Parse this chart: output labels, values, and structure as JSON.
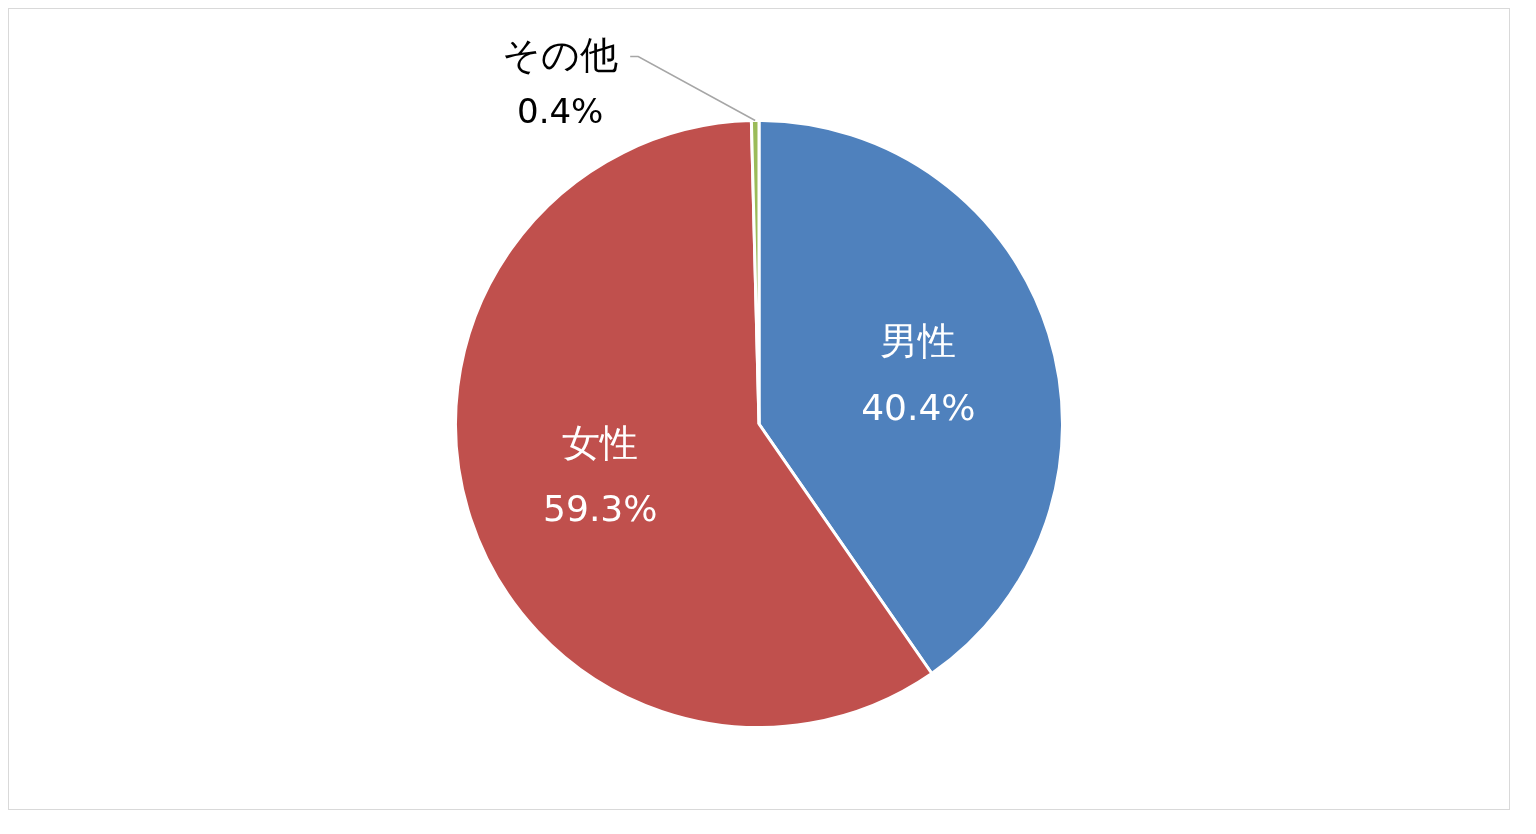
{
  "chart_data": {
    "type": "pie",
    "categories": [
      "男性",
      "女性",
      "その他"
    ],
    "values": [
      40.4,
      59.3,
      0.4
    ],
    "value_labels": [
      "40.4%",
      "59.3%",
      "0.4%"
    ],
    "colors": [
      "#4f81bd",
      "#c0504d",
      "#9bbb59"
    ],
    "legend": false
  }
}
